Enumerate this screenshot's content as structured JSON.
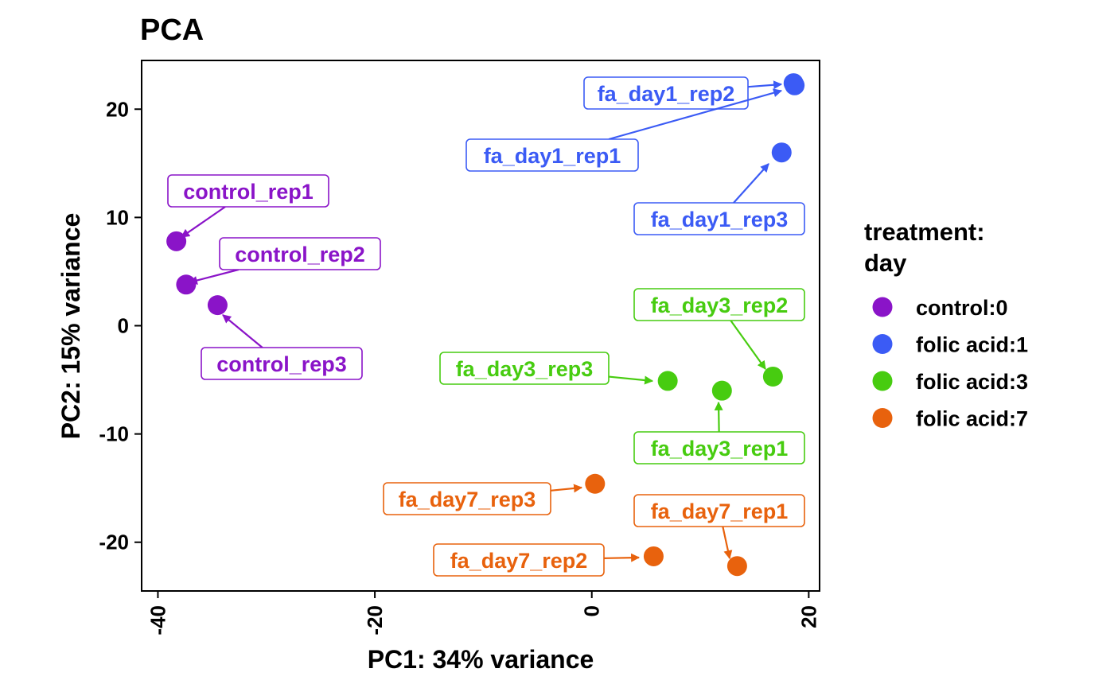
{
  "chart_data": {
    "type": "scatter",
    "title": "PCA",
    "xlabel": "PC1: 34% variance",
    "ylabel": "PC2: 15% variance",
    "xlim": [
      -41.5,
      21
    ],
    "ylim": [
      -24.5,
      24.5
    ],
    "x_ticks": [
      -40,
      -20,
      0,
      20
    ],
    "y_ticks": [
      20,
      10,
      0,
      -10,
      -20
    ],
    "x_tick_labels": [
      "-40",
      "-20",
      "0",
      "20"
    ],
    "y_tick_labels": [
      "20",
      "10",
      "0",
      "-10",
      "-20"
    ],
    "grid": false,
    "legend": {
      "title_lines": [
        "treatment:",
        "day"
      ],
      "placement": "right"
    },
    "series": [
      {
        "name": "control:0",
        "color": "#8a14c8",
        "points": [
          {
            "label": "control_rep1",
            "x": -38.3,
            "y": 7.8
          },
          {
            "label": "control_rep2",
            "x": -37.4,
            "y": 3.8
          },
          {
            "label": "control_rep3",
            "x": -34.5,
            "y": 1.9
          }
        ]
      },
      {
        "name": "folic acid:1",
        "color": "#3b5bf5",
        "points": [
          {
            "label": "fa_day1_rep2",
            "x": 18.6,
            "y": 22.4
          },
          {
            "label": "fa_day1_rep1",
            "x": 18.7,
            "y": 22.2
          },
          {
            "label": "fa_day1_rep3",
            "x": 17.5,
            "y": 16.0
          }
        ]
      },
      {
        "name": "folic acid:3",
        "color": "#47cc10",
        "points": [
          {
            "label": "fa_day3_rep2",
            "x": 16.7,
            "y": -4.7
          },
          {
            "label": "fa_day3_rep3",
            "x": 7.0,
            "y": -5.1
          },
          {
            "label": "fa_day3_rep1",
            "x": 12.0,
            "y": -6.0
          }
        ]
      },
      {
        "name": "folic acid:7",
        "color": "#e8620d",
        "points": [
          {
            "label": "fa_day7_rep3",
            "x": 0.3,
            "y": -14.6
          },
          {
            "label": "fa_day7_rep1",
            "x": 13.4,
            "y": -22.2
          },
          {
            "label": "fa_day7_rep2",
            "x": 5.7,
            "y": -21.3
          }
        ]
      }
    ]
  }
}
